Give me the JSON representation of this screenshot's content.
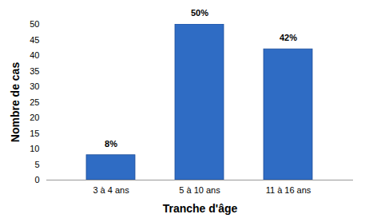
{
  "chart_data": {
    "type": "bar",
    "categories": [
      "3 à 4 ans",
      "5 à 10 ans",
      "11 à 16 ans"
    ],
    "values": [
      8,
      50,
      42
    ],
    "value_labels": [
      "8%",
      "50%",
      "42%"
    ],
    "data_labels": true,
    "x_label": "Tranche d'âge",
    "y_label": "Nombre de cas",
    "color": "#2f6cc4",
    "ylim": [
      0,
      50
    ],
    "yticks": [
      0,
      5,
      10,
      15,
      20,
      25,
      30,
      35,
      40,
      45,
      50
    ],
    "grid": false
  }
}
